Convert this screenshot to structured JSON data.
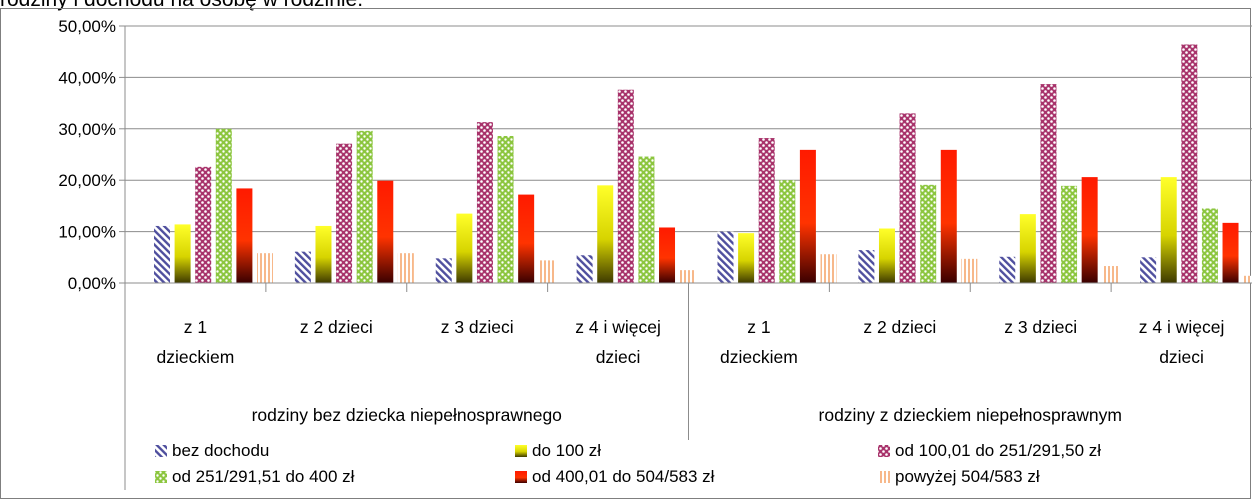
{
  "title_fragment": "rodziny i dochodu na osobę w rodzinie.",
  "chart_data": {
    "type": "bar",
    "title": "",
    "xlabel": "",
    "ylabel": "",
    "ylim": [
      0,
      50
    ],
    "yticks": [
      "0,00%",
      "10,00%",
      "20,00%",
      "30,00%",
      "40,00%",
      "50,00%"
    ],
    "grid": true,
    "legend_position": "bottom",
    "groups": [
      {
        "label": "rodziny bez dziecka niepełnosprawnego",
        "categories": [
          [
            "z 1",
            "dzieckiem"
          ],
          [
            "z 2 dzieci"
          ],
          [
            "z 3 dzieci"
          ],
          [
            "z 4 i więcej",
            "dzieci"
          ]
        ]
      },
      {
        "label": "rodziny z dzieckiem niepełnosprawnym",
        "categories": [
          [
            "z 1",
            "dzieckiem"
          ],
          [
            "z 2 dzieci"
          ],
          [
            "z 3 dzieci"
          ],
          [
            "z 4 i więcej",
            "dzieci"
          ]
        ]
      }
    ],
    "series": [
      {
        "name": "bez dochodu",
        "pattern": "diagonal",
        "color": "#4f4f9e",
        "values": [
          11.1,
          6.1,
          4.8,
          5.4,
          10.0,
          6.4,
          5.1,
          5.0
        ]
      },
      {
        "name": "do 100 zł",
        "pattern": "gradient-yellow",
        "color": "#ffff00",
        "values": [
          11.4,
          11.1,
          13.5,
          19.0,
          9.7,
          10.6,
          13.4,
          20.6
        ]
      },
      {
        "name": "od 100,01 do 251/291,50 zł",
        "pattern": "dots-magenta",
        "color": "#a8336b",
        "values": [
          22.6,
          27.1,
          31.3,
          37.6,
          28.2,
          33.0,
          38.7,
          46.4
        ]
      },
      {
        "name": "od 251/291,51 do 400 zł",
        "pattern": "dots-green",
        "color": "#8cc63f",
        "values": [
          30.0,
          29.6,
          28.6,
          24.6,
          20.0,
          19.1,
          18.9,
          14.5
        ]
      },
      {
        "name": "od 400,01 do 504/583 zł",
        "pattern": "gradient-red",
        "color": "#ff2a00",
        "values": [
          18.4,
          19.9,
          17.2,
          10.8,
          25.9,
          25.9,
          20.6,
          11.7
        ]
      },
      {
        "name": "powyżej 504/583 zł",
        "pattern": "stripes-peach",
        "color": "#f7b88a",
        "values": [
          5.8,
          5.8,
          4.4,
          2.5,
          5.6,
          4.7,
          3.3,
          1.4
        ]
      }
    ]
  }
}
